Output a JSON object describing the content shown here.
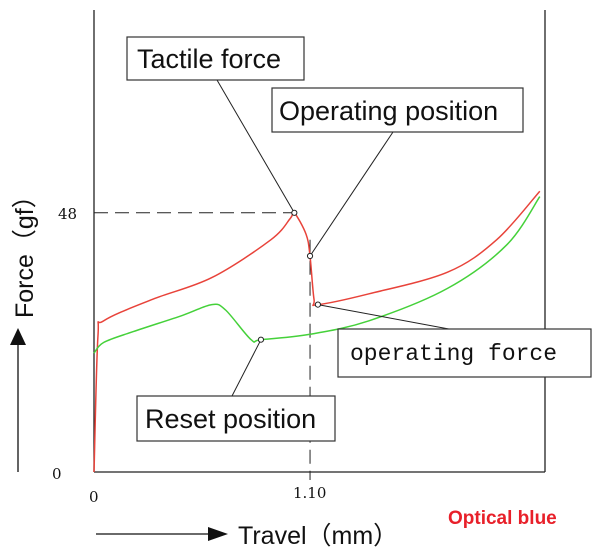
{
  "chart_data": {
    "type": "line",
    "xlabel": "Travel（mm）",
    "ylabel": "Force（gf）",
    "x_ticks": [
      "0",
      "1.10"
    ],
    "y_ticks": [
      "0",
      "48"
    ],
    "series": [
      {
        "color": "#e8433a",
        "x": [
          0,
          0.02,
          0.05,
          0.3,
          0.6,
          0.9,
          1.0,
          1.02,
          1.08,
          1.1,
          1.12,
          1.14,
          1.4,
          1.8,
          2.05,
          2.27
        ],
        "y": [
          0,
          25,
          28,
          32,
          36,
          43,
          47,
          48,
          44,
          40,
          32,
          31,
          33,
          37,
          43,
          52
        ]
      },
      {
        "color": "#45d13a",
        "x": [
          0,
          0.05,
          0.2,
          0.45,
          0.6,
          0.67,
          0.8,
          0.85,
          1.1,
          1.4,
          1.8,
          2.1,
          2.27
        ],
        "y": [
          22,
          24,
          26,
          29,
          31,
          30,
          24.5,
          24.5,
          25.5,
          28,
          34,
          42,
          51
        ]
      }
    ],
    "reference": {
      "x": 1.1,
      "y": 48
    },
    "annotations": [
      {
        "label": "Tactile force",
        "x": 1.02,
        "y": 48
      },
      {
        "label": "Operating position",
        "x": 1.1,
        "y": 40
      },
      {
        "label": "operating force",
        "x": 1.14,
        "y": 31
      },
      {
        "label": "Reset position",
        "x": 0.85,
        "y": 24.5
      }
    ],
    "brand": "Optical blue"
  }
}
